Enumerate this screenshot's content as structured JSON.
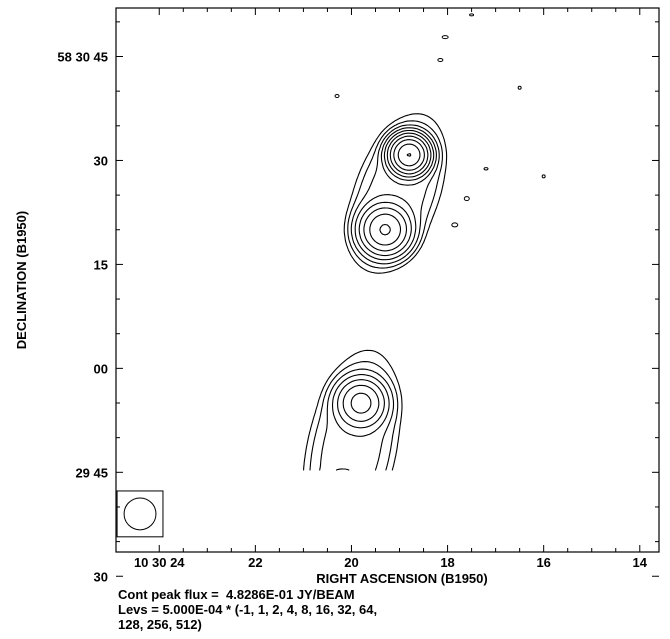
{
  "chart_data": {
    "type": "contour",
    "title": "",
    "xlabel": "RIGHT ASCENSION (B1950)",
    "ylabel": "DECLINATION (B1950)",
    "x_units": "RA seconds of 10h30m",
    "y_units": "Dec arcsec offset from 58 30 00",
    "xlim": [
      24.9,
      13.6
    ],
    "ylim": [
      -26.5,
      52.0
    ],
    "x_ticks": [
      {
        "value": 24,
        "label": "10 30 24"
      },
      {
        "value": 22,
        "label": "22"
      },
      {
        "value": 20,
        "label": "20"
      },
      {
        "value": 18,
        "label": "18"
      },
      {
        "value": 16,
        "label": "16"
      },
      {
        "value": 14,
        "label": "14"
      }
    ],
    "y_ticks": [
      {
        "value": 45,
        "label": "58 30 45"
      },
      {
        "value": 30,
        "label": "30"
      },
      {
        "value": 15,
        "label": "15"
      },
      {
        "value": 0,
        "label": "00"
      },
      {
        "value": -15,
        "label": "29 45"
      },
      {
        "value": -30,
        "label": "30"
      }
    ],
    "peak_flux_jy_per_beam": 0.48286,
    "base_level": 0.0005,
    "levels": [
      -1,
      1,
      2,
      4,
      8,
      16,
      32,
      64,
      128,
      256,
      512
    ],
    "components": [
      {
        "ra": 18.8,
        "dec": 30.8,
        "role": "northern lobe peak"
      },
      {
        "ra": 19.3,
        "dec": 20.0,
        "role": "northern lobe secondary"
      },
      {
        "ra": 19.8,
        "dec": -5.0,
        "role": "southern lobe secondary"
      },
      {
        "ra": 20.2,
        "dec": -18.4,
        "role": "southern lobe peak"
      }
    ],
    "beam": {
      "ra": 24.4,
      "dec": -21.0,
      "diameter_arcsec": 4.6
    }
  },
  "caption": {
    "peak_line": "Cont peak flux =  4.8286E-01 JY/BEAM",
    "levs_line1": "Levs = 5.000E-04 * (-1, 1, 2, 4, 8, 16, 32, 64,",
    "levs_line2": "128, 256, 512)"
  }
}
